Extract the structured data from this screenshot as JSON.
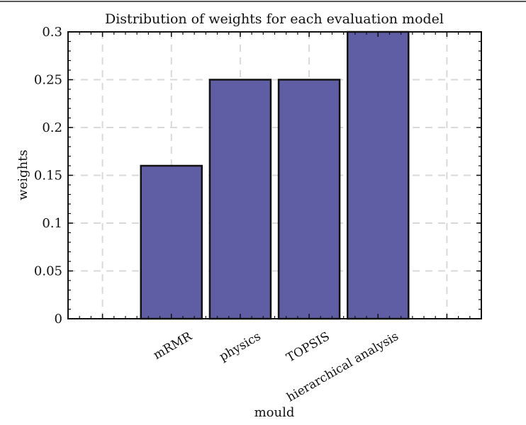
{
  "chart_data": {
    "type": "bar",
    "title": "Distribution of weights for each evaluation model",
    "xlabel": "mould",
    "ylabel": "weights",
    "categories": [
      "",
      "mRMR",
      "physics",
      "TOPSIS",
      "hierarchical analysis",
      ""
    ],
    "values": [
      null,
      0.16,
      0.25,
      0.25,
      0.3,
      null
    ],
    "ylim": [
      0,
      0.3
    ],
    "yticks": [
      0,
      0.05,
      0.1,
      0.15,
      0.2,
      0.25,
      0.3
    ],
    "ytick_labels": [
      "0",
      "0.05",
      "0.1",
      "0.15",
      "0.2",
      "0.25",
      "0.3"
    ],
    "grid": true,
    "bar_color": "#5f5ea4",
    "edge_color": "#111111",
    "grid_color": "#d9d9d9"
  }
}
